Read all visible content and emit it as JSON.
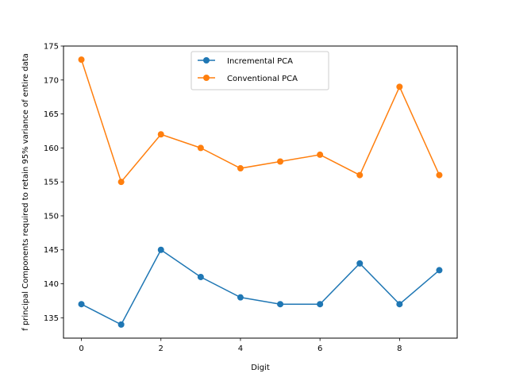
{
  "chart_data": {
    "type": "line",
    "title": "",
    "xlabel": "Digit",
    "ylabel": "f principal Components required to retain 95% variance of entire data",
    "x": [
      0,
      1,
      2,
      3,
      4,
      5,
      6,
      7,
      8,
      9
    ],
    "xlim": [
      -0.45,
      9.45
    ],
    "ylim": [
      132,
      175
    ],
    "xticks": [
      0,
      2,
      4,
      6,
      8
    ],
    "yticks": [
      135,
      140,
      145,
      150,
      155,
      160,
      165,
      170,
      175
    ],
    "grid": false,
    "legend_position": "top-center",
    "series": [
      {
        "name": "Incremental PCA",
        "color": "#1f77b4",
        "values": [
          137,
          134,
          145,
          141,
          138,
          137,
          137,
          143,
          137,
          142
        ]
      },
      {
        "name": "Conventional PCA",
        "color": "#ff7f0e",
        "values": [
          173,
          155,
          162,
          160,
          157,
          158,
          159,
          156,
          169,
          156
        ]
      }
    ]
  }
}
